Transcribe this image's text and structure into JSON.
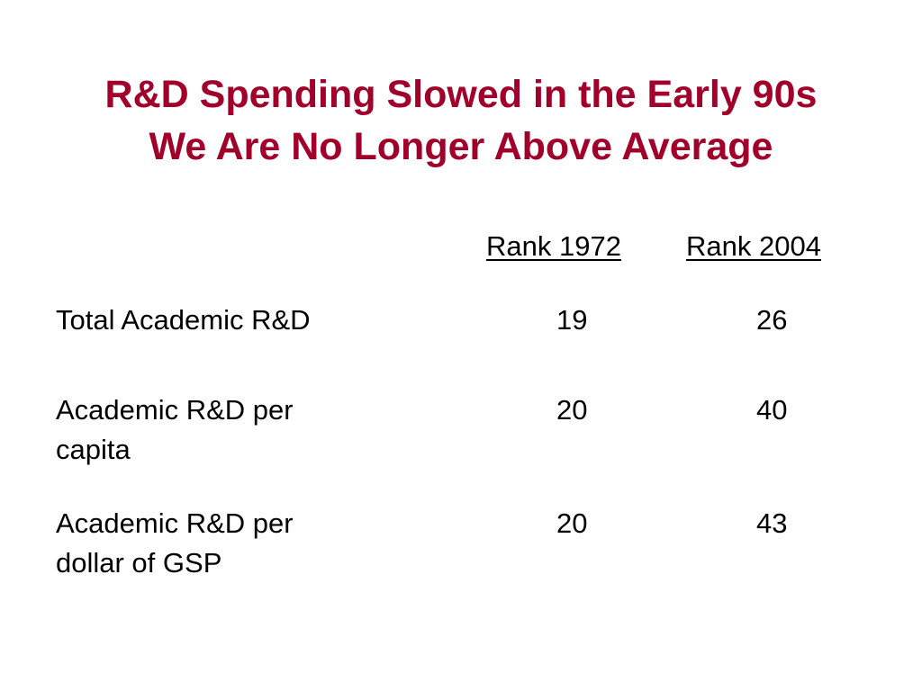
{
  "slide": {
    "title_line1": "R&D Spending Slowed in the Early 90s",
    "title_line2": "We Are No Longer Above Average",
    "title_color": "#a0002a"
  },
  "table": {
    "headers": [
      "Rank 1972",
      "Rank 2004"
    ],
    "rows": [
      {
        "label_line1": "Total Academic R&D",
        "label_line2": "",
        "rank_1972": "19",
        "rank_2004": "26"
      },
      {
        "label_line1": "Academic R&D per",
        "label_line2": "capita",
        "rank_1972": "20",
        "rank_2004": "40"
      },
      {
        "label_line1": "Academic R&D per",
        "label_line2": "dollar of GSP",
        "rank_1972": "20",
        "rank_2004": "43"
      }
    ]
  }
}
